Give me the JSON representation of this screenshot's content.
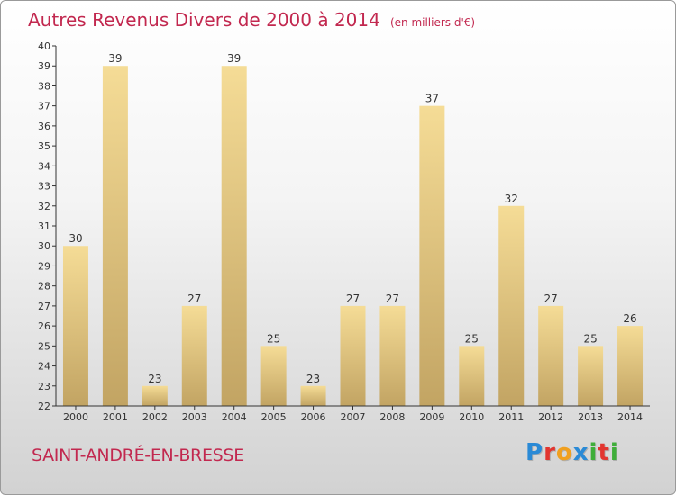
{
  "header": {
    "title": "Autres Revenus Divers de 2000 à 2014",
    "subtitle": "(en milliers d'€)"
  },
  "footer": {
    "place": "SAINT-ANDRÉ-EN-BRESSE",
    "logo_letters": [
      "P",
      "r",
      "o",
      "x",
      "i",
      "t",
      "i"
    ],
    "logo_colors": [
      "#2a8ad6",
      "#e2352f",
      "#f0a020",
      "#2a8ad6",
      "#3fae3a",
      "#e2352f",
      "#3fae3a"
    ]
  },
  "chart_data": {
    "type": "bar",
    "title": "Autres Revenus Divers de 2000 à 2014",
    "xlabel": "",
    "ylabel": "",
    "categories": [
      "2000",
      "2001",
      "2002",
      "2003",
      "2004",
      "2005",
      "2006",
      "2007",
      "2008",
      "2009",
      "2010",
      "2011",
      "2012",
      "2013",
      "2014"
    ],
    "values": [
      30,
      39,
      23,
      27,
      39,
      25,
      23,
      27,
      27,
      37,
      25,
      32,
      27,
      25,
      26
    ],
    "data_labels": [
      "30",
      "39",
      "23",
      "27",
      "39",
      "25",
      "23",
      "27",
      "27",
      "37",
      "25",
      "32",
      "27",
      "25",
      "26"
    ],
    "ylim": [
      22,
      40
    ],
    "yticks": [
      "22",
      "23",
      "24",
      "25",
      "26",
      "27",
      "28",
      "29",
      "30",
      "31",
      "32",
      "33",
      "34",
      "35",
      "36",
      "37",
      "38",
      "39",
      "40"
    ],
    "grid": false,
    "colors": {
      "bar_light": "#f5dc96",
      "bar_dark": "#c2a463",
      "axis": "#333333"
    }
  }
}
